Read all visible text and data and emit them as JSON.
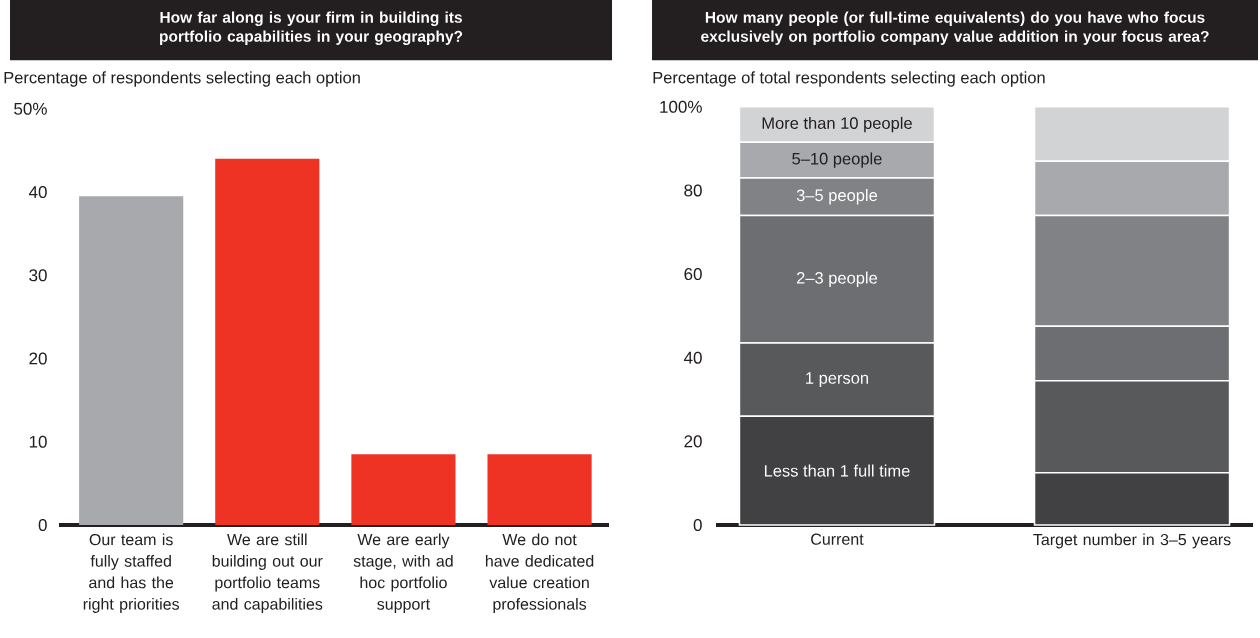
{
  "chart_data": [
    {
      "type": "bar",
      "title": "How far along is your firm in building its portfolio capabilities in your geography?",
      "ylabel": "Percentage of respondents selecting each option",
      "categories": [
        "Our team is fully staffed and has the right priorities",
        "We are still building out our portfolio teams and capabilities",
        "We are early stage, with ad hoc portfolio support",
        "We do not have dedicated value creation professionals"
      ],
      "values": [
        39.5,
        44,
        8.5,
        8.5
      ],
      "colors": [
        "#a7a9ac",
        "#ee3224",
        "#ee3224",
        "#ee3224"
      ],
      "ylim": [
        0,
        50
      ],
      "yticks": [
        0,
        10,
        20,
        30,
        40,
        {
          "value": 50,
          "label": "50%"
        }
      ]
    },
    {
      "type": "bar",
      "stacked": true,
      "title": "How many people (or full-time equivalents) do you have who focus exclusively on portfolio company value addition in your focus area?",
      "ylabel": "Percentage of total respondents selecting each option",
      "categories": [
        "Current",
        "Target number in 3–5 years"
      ],
      "series": [
        {
          "name": "Less than 1 full time",
          "color": "#414042",
          "values": [
            26,
            12.5
          ]
        },
        {
          "name": "1 person",
          "color": "#58595b",
          "values": [
            17.5,
            22
          ]
        },
        {
          "name": "2–3 people",
          "color": "#6d6e71",
          "values": [
            30.5,
            13
          ]
        },
        {
          "name": "3–5 people",
          "color": "#808285",
          "values": [
            9,
            26.5
          ]
        },
        {
          "name": "5–10 people",
          "color": "#a7a9ac",
          "values": [
            8.5,
            13
          ]
        },
        {
          "name": "More than 10 people",
          "color": "#d1d3d4",
          "values": [
            8.5,
            13
          ]
        }
      ],
      "ylim": [
        0,
        100
      ],
      "yticks": [
        0,
        20,
        40,
        60,
        80,
        {
          "value": 100,
          "label": "100%"
        }
      ]
    }
  ]
}
